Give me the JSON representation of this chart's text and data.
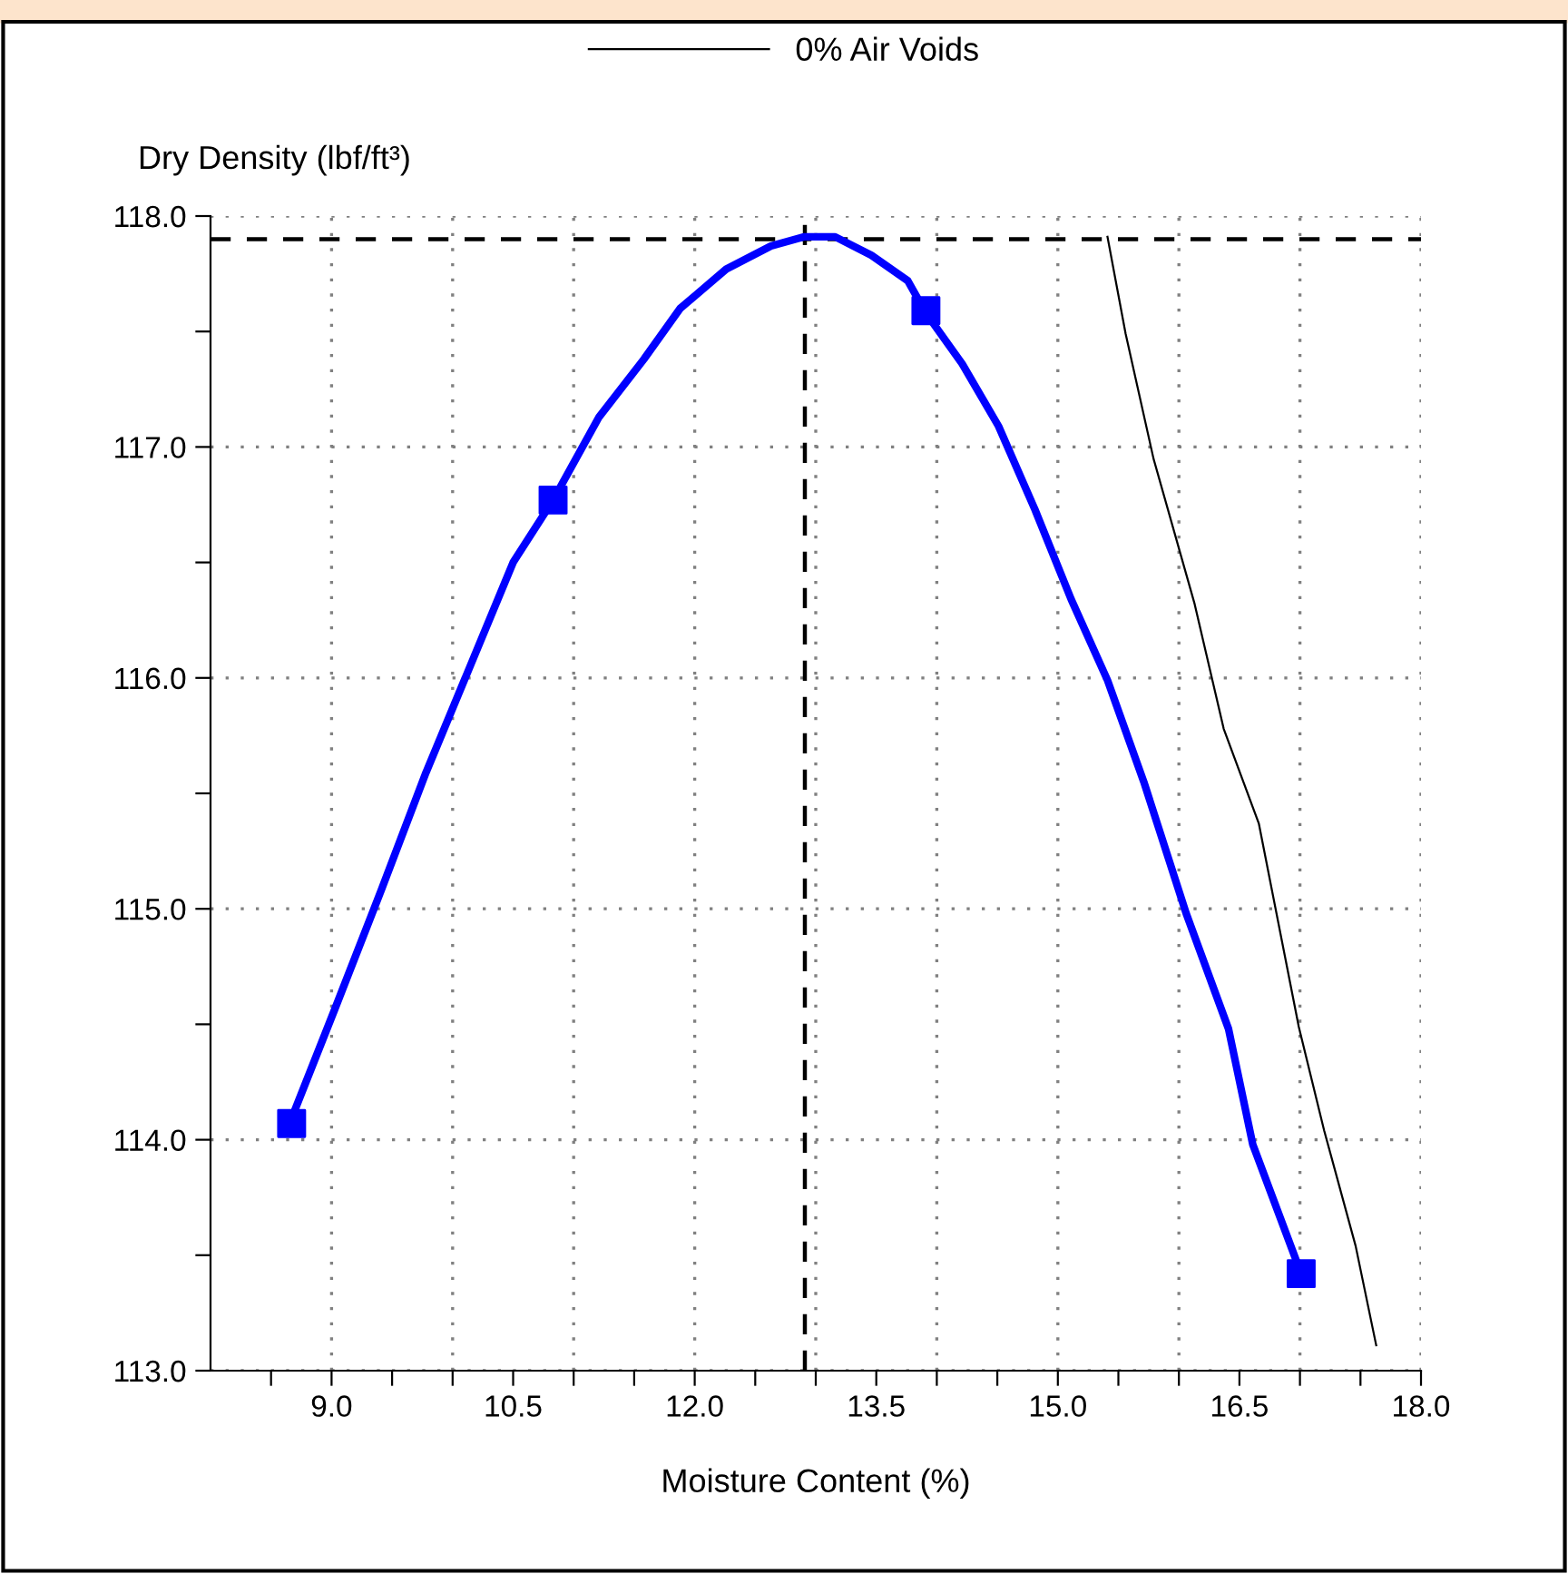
{
  "chart_data": {
    "type": "line",
    "xlabel": "Moisture Content (%)",
    "ylabel": "Dry Density (lbf/ft³)",
    "xlim": [
      8.0,
      18.0
    ],
    "ylim": [
      113.0,
      118.0
    ],
    "xticks": [
      {
        "value": 8.5,
        "label": null
      },
      "9.0",
      {
        "value": 9.5,
        "label": null
      },
      {
        "value": 10.0,
        "label": null
      },
      {
        "value": 10.5,
        "label": "10.5"
      },
      {
        "value": 11.0,
        "label": null
      },
      {
        "value": 11.5,
        "label": null
      },
      {
        "value": 12.0,
        "label": "12.0"
      },
      {
        "value": 12.5,
        "label": null
      },
      {
        "value": 13.0,
        "label": null
      },
      {
        "value": 13.5,
        "label": "13.5"
      },
      {
        "value": 14.0,
        "label": null
      },
      {
        "value": 14.5,
        "label": null
      },
      {
        "value": 15.0,
        "label": "15.0"
      },
      {
        "value": 15.5,
        "label": null
      },
      {
        "value": 16.0,
        "label": null
      },
      {
        "value": 16.5,
        "label": "16.5"
      },
      {
        "value": 17.0,
        "label": null
      },
      {
        "value": 17.5,
        "label": null
      },
      {
        "value": 18.0,
        "label": "18.0"
      }
    ],
    "yticks": [
      {
        "value": 113.0,
        "label": "113.0"
      },
      {
        "value": 113.5,
        "label": null
      },
      {
        "value": 114.0,
        "label": "114.0"
      },
      {
        "value": 114.5,
        "label": null
      },
      {
        "value": 115.0,
        "label": "115.0"
      },
      {
        "value": 115.5,
        "label": null
      },
      {
        "value": 116.0,
        "label": "116.0"
      },
      {
        "value": 116.5,
        "label": null
      },
      {
        "value": 117.0,
        "label": "117.0"
      },
      {
        "value": 117.5,
        "label": null
      },
      {
        "value": 118.0,
        "label": "118.0"
      }
    ],
    "grid": true,
    "legend": "top",
    "series": [
      {
        "color": "#0000ff",
        "marker": "none",
        "line_style": "solid",
        "x": [
          8.66,
          9.03,
          9.41,
          9.78,
          10.16,
          10.5,
          10.83,
          11.21,
          11.58,
          11.88,
          12.26,
          12.63,
          12.9,
          13.16,
          13.46,
          13.76,
          13.91,
          14.21,
          14.51,
          14.81,
          15.11,
          15.41,
          15.71,
          16.06,
          16.41,
          16.61,
          17.01
        ],
        "values": [
          114.08,
          114.57,
          115.08,
          115.59,
          116.07,
          116.5,
          116.77,
          117.13,
          117.38,
          117.6,
          117.77,
          117.87,
          117.91,
          117.91,
          117.83,
          117.72,
          117.58,
          117.36,
          117.09,
          116.73,
          116.34,
          115.99,
          115.55,
          114.98,
          114.48,
          113.98,
          113.42
        ]
      },
      {
        "type": "scatter",
        "color": "#0000ff",
        "marker": "square",
        "x": [
          8.67,
          10.83,
          13.91,
          17.01
        ],
        "values": [
          114.07,
          116.77,
          117.59,
          113.42
        ]
      },
      {
        "name": "0% Air Voids",
        "color": "#000000",
        "marker": "none",
        "line_style": "solid",
        "x": [
          15.41,
          15.56,
          15.79,
          16.13,
          16.37,
          16.66,
          16.99,
          17.2,
          17.46,
          17.63
        ],
        "values": [
          117.91,
          117.49,
          116.95,
          116.32,
          115.78,
          115.37,
          114.49,
          114.04,
          113.54,
          113.11
        ]
      }
    ],
    "ref_lines": [
      {
        "axis": "x",
        "value": 12.91,
        "color": "#000000",
        "line_style": "dashed"
      },
      {
        "axis": "y",
        "value": 117.9,
        "color": "#000000",
        "line_style": "dashed"
      }
    ]
  }
}
